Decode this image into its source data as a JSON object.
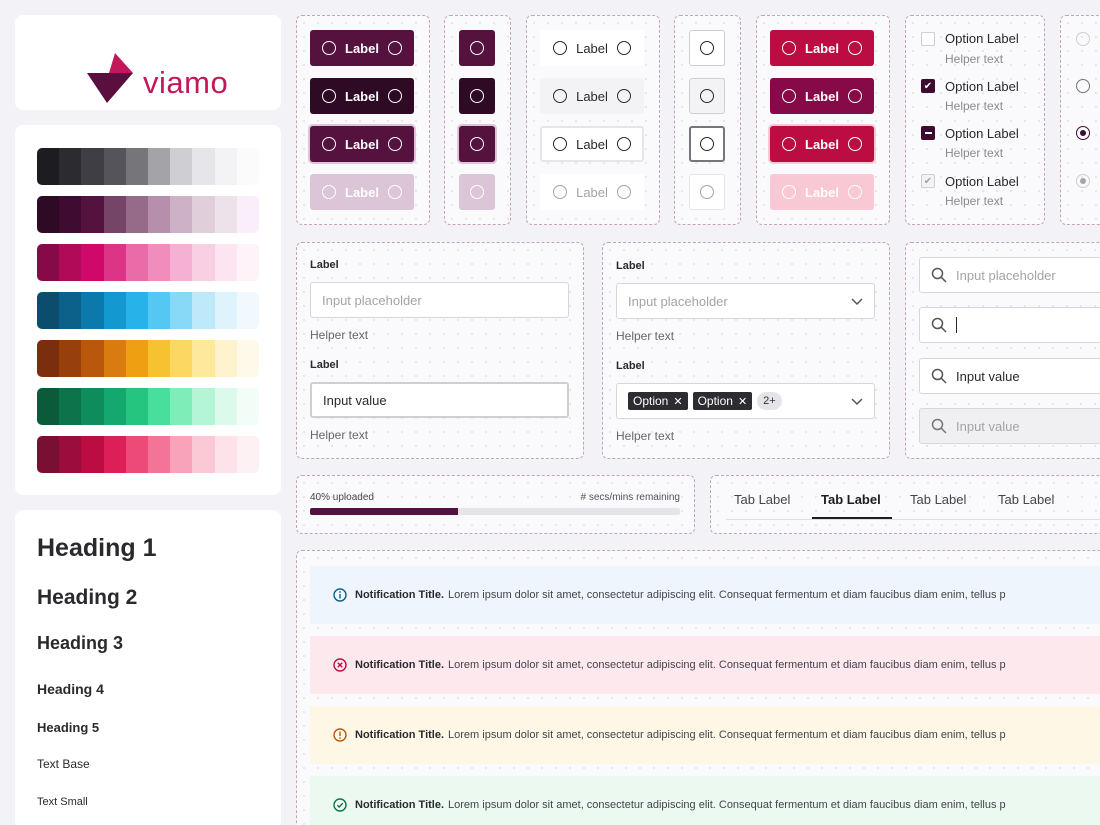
{
  "brand": {
    "name": "viamo",
    "color": "#c2185b",
    "mark_color": "#5a0f3e"
  },
  "palettes": [
    [
      "#1d1c20",
      "#2c2b30",
      "#3f3e44",
      "#55545b",
      "#767579",
      "#a4a3a8",
      "#cfced3",
      "#e6e5e9",
      "#f3f2f5",
      "#fbfbfc"
    ],
    [
      "#2e0a24",
      "#3d0c30",
      "#55123f",
      "#754467",
      "#966b8a",
      "#b58fab",
      "#cdb2c7",
      "#e0cedb",
      "#ede2ea",
      "#fbeefb"
    ],
    [
      "#860a48",
      "#b00a58",
      "#d0086a",
      "#dc3587",
      "#e96ca9",
      "#f08dbd",
      "#f4b1d3",
      "#f8cfe3",
      "#fce5f0",
      "#fef3f8"
    ],
    [
      "#0c4d6e",
      "#0c618a",
      "#0c79ad",
      "#1498d0",
      "#27b3ea",
      "#54c8f3",
      "#88d9f7",
      "#bde9fb",
      "#def3fc",
      "#f1f9fe"
    ],
    [
      "#7a2e0e",
      "#98400c",
      "#b9580d",
      "#d97b0f",
      "#efa012",
      "#f7c232",
      "#fcd862",
      "#fde89b",
      "#fef3cc",
      "#fef9e8"
    ],
    [
      "#0b5b3b",
      "#0d734b",
      "#0f8c5b",
      "#14a86e",
      "#25c47f",
      "#48df9c",
      "#7eedb8",
      "#b4f5d5",
      "#dcfaeb",
      "#f1fdf6"
    ],
    [
      "#7a0f36",
      "#9a0d3d",
      "#bc0d42",
      "#dd1f57",
      "#ee4a77",
      "#f37497",
      "#f8a3ba",
      "#fbc8d5",
      "#fde2e9",
      "#fef1f4"
    ]
  ],
  "typography": [
    "Heading 1",
    "Heading 2",
    "Heading 3",
    "Heading 4",
    "Heading 5",
    "Text Base",
    "Text Small"
  ],
  "buttons": {
    "label": "Label",
    "primary": [
      "#55123f",
      "#2e0a24",
      "#55123f",
      "#dcc5d6"
    ],
    "danger": [
      "#bc0d42",
      "#860a48",
      "#bc0d42",
      "#f8c8d4"
    ]
  },
  "checkbox_group": [
    {
      "label": "Option Label",
      "helper": "Helper text"
    },
    {
      "label": "Option Label",
      "helper": "Helper text"
    },
    {
      "label": "Option Label",
      "helper": "Helper text"
    },
    {
      "label": "Option Label",
      "helper": "Helper text"
    }
  ],
  "form_text": {
    "label1": "Label",
    "placeholder": "Input placeholder",
    "helper1": "Helper text",
    "label2": "Label",
    "value": "Input value",
    "helper2": "Helper text"
  },
  "form_select": {
    "label1": "Label",
    "placeholder": "Input placeholder",
    "helper1": "Helper text",
    "label2": "Label",
    "chips": [
      "Option",
      "Option"
    ],
    "more": "2+",
    "helper2": "Helper text"
  },
  "search_fields": {
    "placeholder": "Input placeholder",
    "value": "Input value",
    "disabled_value": "Input value"
  },
  "progress": {
    "label": "40% uploaded",
    "remaining": "# secs/mins remaining",
    "value": 0.4
  },
  "tabs": [
    "Tab Label",
    "Tab Label",
    "Tab Label",
    "Tab Label"
  ],
  "notifications": [
    {
      "type": "info",
      "title": "Notification Title.",
      "body": "Lorem ipsum dolor sit amet, consectetur adipiscing elit. Consequat fermentum et diam faucibus diam enim, tellus p",
      "bg": "#eef5fd",
      "icon_color": "#0c618a"
    },
    {
      "type": "error",
      "title": "Notification Title.",
      "body": "Lorem ipsum dolor sit amet, consectetur adipiscing elit. Consequat fermentum et diam faucibus diam enim, tellus p",
      "bg": "#fde8ee",
      "icon_color": "#bc0d42"
    },
    {
      "type": "warning",
      "title": "Notification Title.",
      "body": "Lorem ipsum dolor sit amet, consectetur adipiscing elit. Consequat fermentum et diam faucibus diam enim, tellus p",
      "bg": "#fef7e6",
      "icon_color": "#b9580d"
    },
    {
      "type": "success",
      "title": "Notification Title.",
      "body": "Lorem ipsum dolor sit amet, consectetur adipiscing elit. Consequat fermentum et diam faucibus diam enim, tellus p",
      "bg": "#ebf9f1",
      "icon_color": "#0d734b"
    }
  ]
}
